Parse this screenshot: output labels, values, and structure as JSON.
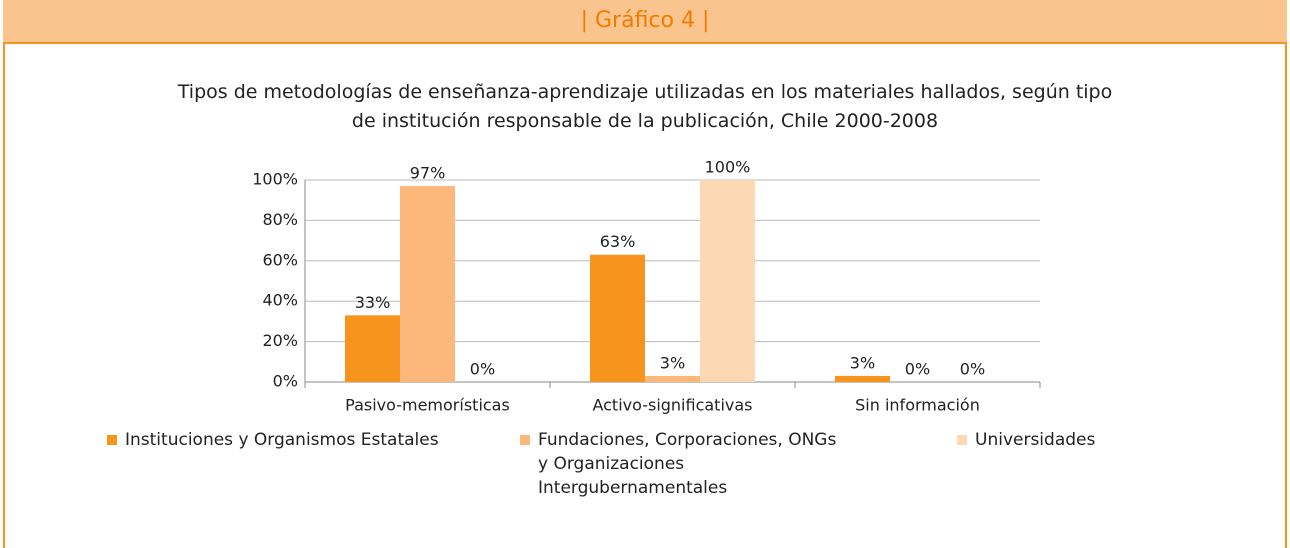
{
  "header": "| Gráfico 4 |",
  "chart_data": {
    "type": "bar",
    "title": "Tipos de metodologías de enseñanza-aprendizaje utilizadas en los materiales hallados, según tipo de institución responsable de la publicación, Chile 2000-2008",
    "categories": [
      "Pasivo-memorísticas",
      "Activo-significativas",
      "Sin información"
    ],
    "series": [
      {
        "name": "Instituciones y Organismos Estatales",
        "color": "#f7941d",
        "values": [
          33,
          63,
          3
        ],
        "value_labels": [
          "33%",
          "63%",
          "3%"
        ]
      },
      {
        "name": "Fundaciones, Corporaciones, ONGs y Organizaciones Intergubernamentales",
        "color": "#fbb87a",
        "values": [
          97,
          3,
          0
        ],
        "value_labels": [
          "97%",
          "3%",
          "0%"
        ]
      },
      {
        "name": "Universidades",
        "color": "#fdd9b3",
        "values": [
          0,
          100,
          0
        ],
        "value_labels": [
          "0%",
          "100%",
          "0%"
        ]
      }
    ],
    "ylim": [
      0,
      100
    ],
    "yticks": [
      {
        "value": 0,
        "label": "0%"
      },
      {
        "value": 20,
        "label": "20%"
      },
      {
        "value": 40,
        "label": "40%"
      },
      {
        "value": 60,
        "label": "60%"
      },
      {
        "value": 80,
        "label": "80%"
      },
      {
        "value": 100,
        "label": "100%"
      }
    ],
    "grid": true
  }
}
